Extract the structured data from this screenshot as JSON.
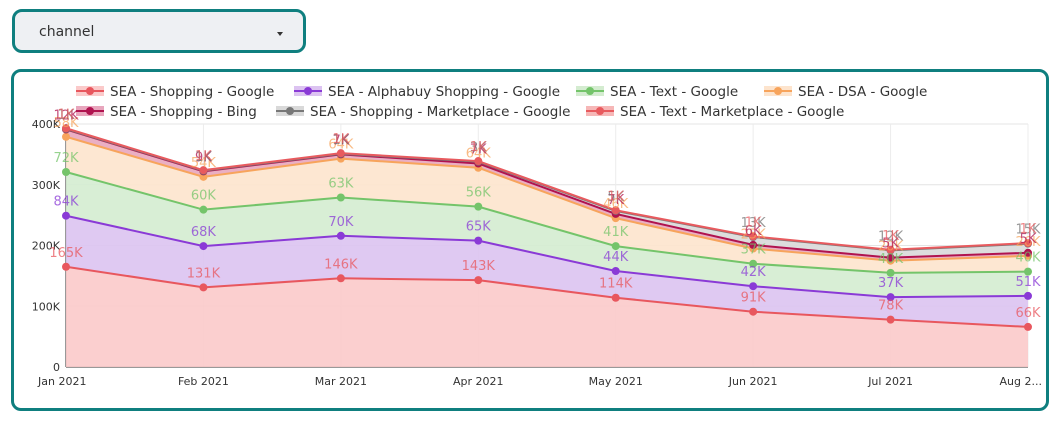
{
  "filter": {
    "label": "channel",
    "icon": "caret-down-icon"
  },
  "chart_data": {
    "type": "area",
    "stacked": true,
    "categories": [
      "Jan 2021",
      "Feb 2021",
      "Mar 2021",
      "Apr 2021",
      "May 2021",
      "Jun 2021",
      "Jul 2021",
      "Aug 2..."
    ],
    "y_ticks": [
      "0",
      "100K",
      "200K",
      "300K",
      "400K"
    ],
    "ylim": [
      0,
      400000
    ],
    "grid": true,
    "legend_position": "top",
    "series": [
      {
        "name": "SEA - Shopping - Google",
        "color": "#e8575e",
        "fill": "#fbcaca",
        "values": [
          165000,
          131000,
          146000,
          143000,
          114000,
          91000,
          78000,
          66000
        ],
        "labels": [
          "165K",
          "131K",
          "146K",
          "143K",
          "114K",
          "91K",
          "78K",
          "66K"
        ]
      },
      {
        "name": "SEA - Alphabuy Shopping - Google",
        "color": "#8a3ad6",
        "fill": "#dcc3f1",
        "values": [
          84000,
          68000,
          70000,
          65000,
          44000,
          42000,
          37000,
          51000
        ],
        "labels": [
          "84K",
          "68K",
          "70K",
          "65K",
          "44K",
          "42K",
          "37K",
          "51K"
        ]
      },
      {
        "name": "SEA - Text - Google",
        "color": "#74c46a",
        "fill": "#d4ecd0",
        "values": [
          72000,
          60000,
          63000,
          56000,
          41000,
          37000,
          40000,
          40000
        ],
        "labels": [
          "72K",
          "60K",
          "63K",
          "56K",
          "41K",
          "37K",
          "40K",
          "40K"
        ]
      },
      {
        "name": "SEA - DSA - Google",
        "color": "#f7a45c",
        "fill": "#fde4cd",
        "values": [
          58000,
          54000,
          64000,
          64000,
          46000,
          25000,
          20000,
          26000
        ],
        "labels": [
          "58K",
          "54K",
          "64K",
          "64K",
          "46K",
          "25K",
          "20K",
          "26K"
        ]
      },
      {
        "name": "SEA - Shopping - Bing",
        "color": "#b0134f",
        "fill": "#e8a6bd",
        "values": [
          12000,
          9000,
          7000,
          7000,
          7000,
          6000,
          5000,
          5000
        ],
        "labels": [
          "12K",
          "9K",
          "7K",
          "7K",
          "7K",
          "6K",
          "5K",
          "5K"
        ]
      },
      {
        "name": "SEA - Shopping - Marketplace - Google",
        "color": "#777777",
        "fill": "#d9d9d9",
        "values": [
          1000,
          1000,
          1000,
          3000,
          5000,
          13000,
          12000,
          15000
        ],
        "labels": [
          "1K",
          "1K",
          "1K",
          "3K",
          "5K",
          "13K",
          "12K",
          "15K"
        ]
      },
      {
        "name": "SEA - Text - Marketplace - Google",
        "color": "#e85a5e",
        "fill": "#f6b7b7",
        "values": [
          1000,
          1000,
          1000,
          1000,
          1000,
          1000,
          1000,
          1000
        ],
        "labels": [
          "1K",
          "1K",
          "1K",
          "1K",
          "1K",
          "1K",
          "1K",
          "1K"
        ]
      }
    ]
  }
}
